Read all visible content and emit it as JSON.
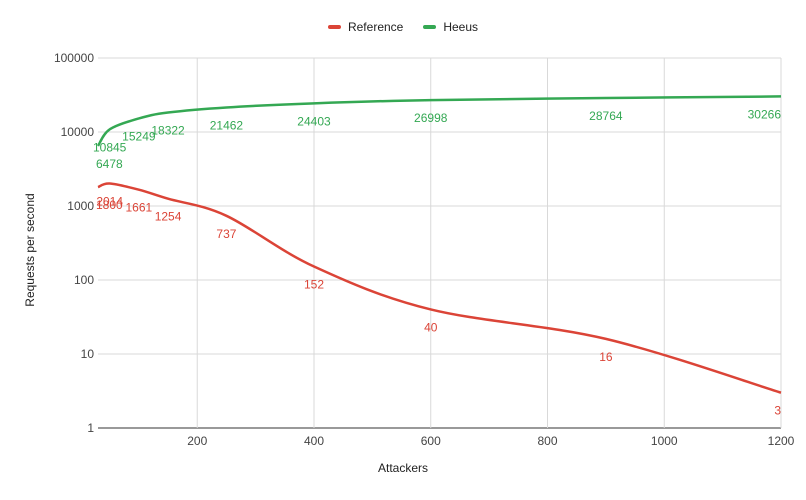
{
  "chart_data": {
    "type": "line",
    "xlabel": "Attackers",
    "ylabel": "Requests per second",
    "y_scale": "log",
    "ylim": [
      1,
      100000
    ],
    "xlim": [
      30,
      1200
    ],
    "x_ticks": [
      200,
      400,
      600,
      800,
      1000,
      1200
    ],
    "y_ticks": [
      1,
      10,
      100,
      1000,
      10000,
      100000
    ],
    "grid": true,
    "legend_position": "top-center",
    "series": [
      {
        "name": "Reference",
        "color": "#db4437",
        "x": [
          30,
          50,
          100,
          150,
          250,
          400,
          600,
          900,
          1200
        ],
        "y": [
          1800,
          2014,
          1661,
          1254,
          737,
          152,
          40,
          16,
          3
        ],
        "labels": [
          "1800",
          "2014",
          "1661",
          "1254",
          "737",
          "152",
          "40",
          "16",
          "3"
        ]
      },
      {
        "name": "Heeus",
        "color": "#34a853",
        "x": [
          30,
          50,
          100,
          150,
          250,
          400,
          600,
          900,
          1200
        ],
        "y": [
          6478,
          10845,
          15249,
          18322,
          21462,
          24403,
          26998,
          28764,
          30266
        ],
        "labels": [
          "6478",
          "10845",
          "15249",
          "18322",
          "21462",
          "24403",
          "26998",
          "28764",
          "30266"
        ]
      }
    ]
  }
}
